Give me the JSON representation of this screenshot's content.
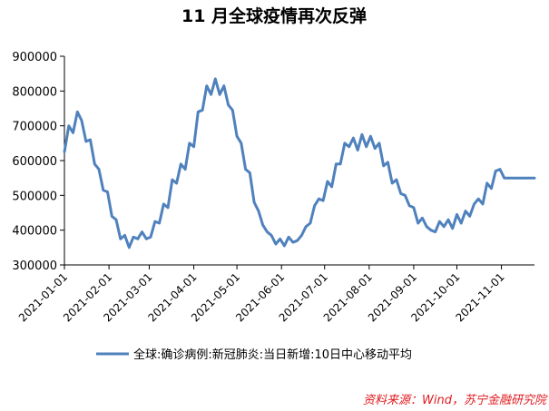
{
  "chart_data": {
    "type": "line",
    "title": "11 月全球疫情再次反弹",
    "xlabel": "",
    "ylabel": "",
    "ylim": [
      300000,
      900000
    ],
    "y_ticks": [
      "300000",
      "400000",
      "500000",
      "600000",
      "700000",
      "800000",
      "900000"
    ],
    "x_ticks": [
      "2021-01-01",
      "2021-02-01",
      "2021-03-01",
      "2021-04-01",
      "2021-05-01",
      "2021-06-01",
      "2021-07-01",
      "2021-08-01",
      "2021-09-01",
      "2021-10-01",
      "2021-11-01"
    ],
    "grid": false,
    "legend_position": "bottom",
    "series": [
      {
        "name": "全球:确诊病例:新冠肺炎:当日新增:10日中心移动平均",
        "color": "#4f81bd",
        "x": [
          "2021-01-01",
          "2021-01-04",
          "2021-01-07",
          "2021-01-10",
          "2021-01-13",
          "2021-01-16",
          "2021-01-19",
          "2021-01-22",
          "2021-01-25",
          "2021-01-28",
          "2021-01-31",
          "2021-02-03",
          "2021-02-06",
          "2021-02-09",
          "2021-02-12",
          "2021-02-15",
          "2021-02-18",
          "2021-02-21",
          "2021-02-24",
          "2021-02-27",
          "2021-03-02",
          "2021-03-05",
          "2021-03-08",
          "2021-03-11",
          "2021-03-14",
          "2021-03-17",
          "2021-03-20",
          "2021-03-23",
          "2021-03-26",
          "2021-03-29",
          "2021-04-01",
          "2021-04-04",
          "2021-04-07",
          "2021-04-10",
          "2021-04-13",
          "2021-04-16",
          "2021-04-19",
          "2021-04-22",
          "2021-04-25",
          "2021-04-28",
          "2021-05-01",
          "2021-05-04",
          "2021-05-07",
          "2021-05-10",
          "2021-05-13",
          "2021-05-16",
          "2021-05-19",
          "2021-05-22",
          "2021-05-25",
          "2021-05-28",
          "2021-05-31",
          "2021-06-03",
          "2021-06-06",
          "2021-06-09",
          "2021-06-12",
          "2021-06-15",
          "2021-06-18",
          "2021-06-21",
          "2021-06-24",
          "2021-06-27",
          "2021-06-30",
          "2021-07-03",
          "2021-07-06",
          "2021-07-09",
          "2021-07-12",
          "2021-07-15",
          "2021-07-18",
          "2021-07-21",
          "2021-07-24",
          "2021-07-27",
          "2021-07-30",
          "2021-08-02",
          "2021-08-05",
          "2021-08-08",
          "2021-08-11",
          "2021-08-14",
          "2021-08-17",
          "2021-08-20",
          "2021-08-23",
          "2021-08-26",
          "2021-08-29",
          "2021-09-01",
          "2021-09-04",
          "2021-09-07",
          "2021-09-10",
          "2021-09-13",
          "2021-09-16",
          "2021-09-19",
          "2021-09-22",
          "2021-09-25",
          "2021-09-28",
          "2021-10-01",
          "2021-10-04",
          "2021-10-07",
          "2021-10-10",
          "2021-10-13",
          "2021-10-16",
          "2021-10-19",
          "2021-10-22",
          "2021-10-25",
          "2021-10-28",
          "2021-10-31",
          "2021-11-03",
          "2021-11-06",
          "2021-11-09",
          "2021-11-12",
          "2021-11-15",
          "2021-11-18",
          "2021-11-21",
          "2021-11-24"
        ],
        "values": [
          625000,
          700000,
          680000,
          740000,
          715000,
          655000,
          660000,
          590000,
          575000,
          515000,
          510000,
          440000,
          430000,
          375000,
          385000,
          350000,
          380000,
          375000,
          395000,
          375000,
          380000,
          425000,
          420000,
          475000,
          465000,
          545000,
          535000,
          590000,
          575000,
          650000,
          640000,
          740000,
          745000,
          815000,
          790000,
          835000,
          790000,
          815000,
          760000,
          745000,
          670000,
          650000,
          575000,
          565000,
          480000,
          455000,
          415000,
          395000,
          385000,
          360000,
          375000,
          355000,
          380000,
          365000,
          370000,
          385000,
          410000,
          420000,
          470000,
          490000,
          485000,
          540000,
          525000,
          590000,
          590000,
          650000,
          640000,
          665000,
          630000,
          675000,
          640000,
          670000,
          635000,
          650000,
          585000,
          595000,
          535000,
          545000,
          505000,
          500000,
          470000,
          465000,
          420000,
          435000,
          410000,
          400000,
          395000,
          425000,
          410000,
          430000,
          405000,
          445000,
          420000,
          455000,
          440000,
          475000,
          490000,
          475000,
          535000,
          520000,
          570000,
          575000,
          550000,
          550000,
          550000,
          550000,
          550000,
          550000,
          550000,
          550000
        ]
      }
    ],
    "source_note": "资料来源：Wind，苏宁金融研究院"
  }
}
